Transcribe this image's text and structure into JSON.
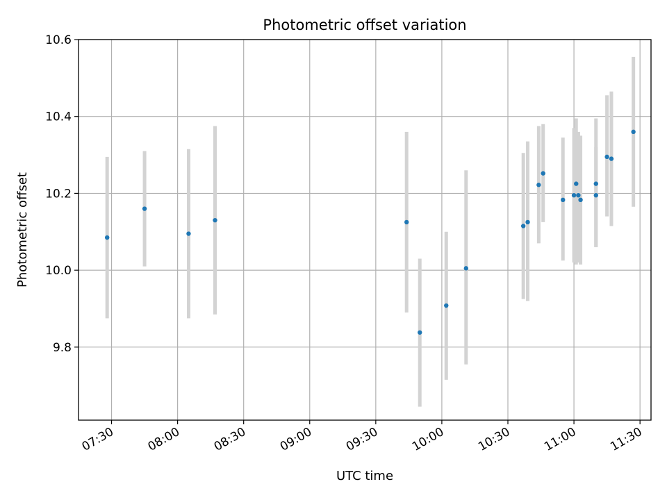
{
  "chart_data": {
    "type": "scatter",
    "title": "Photometric offset variation",
    "xlabel": "UTC time",
    "ylabel": "Photometric offset",
    "x_axis": "time",
    "xlim": [
      "07:15",
      "11:35"
    ],
    "ylim": [
      9.61,
      10.6
    ],
    "xticks": [
      "07:30",
      "08:00",
      "08:30",
      "09:00",
      "09:30",
      "10:00",
      "10:30",
      "11:00",
      "11:30"
    ],
    "yticks": [
      9.8,
      10.0,
      10.2,
      10.4,
      10.6
    ],
    "grid": true,
    "colors": {
      "point": "#1f77b4",
      "errorbar": "#d3d3d3",
      "grid": "#b0b0b0"
    },
    "series": [
      {
        "points": [
          {
            "x": "07:28",
            "y": 10.085,
            "ylow": 9.875,
            "yhigh": 10.295
          },
          {
            "x": "07:45",
            "y": 10.16,
            "ylow": 10.01,
            "yhigh": 10.31
          },
          {
            "x": "08:05",
            "y": 10.095,
            "ylow": 9.875,
            "yhigh": 10.315
          },
          {
            "x": "08:17",
            "y": 10.13,
            "ylow": 9.885,
            "yhigh": 10.375
          },
          {
            "x": "09:44",
            "y": 10.125,
            "ylow": 9.89,
            "yhigh": 10.36
          },
          {
            "x": "09:50",
            "y": 9.838,
            "ylow": 9.645,
            "yhigh": 10.03
          },
          {
            "x": "10:02",
            "y": 9.908,
            "ylow": 9.715,
            "yhigh": 10.1
          },
          {
            "x": "10:11",
            "y": 10.005,
            "ylow": 9.755,
            "yhigh": 10.26
          },
          {
            "x": "10:37",
            "y": 10.115,
            "ylow": 9.925,
            "yhigh": 10.305
          },
          {
            "x": "10:39",
            "y": 10.125,
            "ylow": 9.92,
            "yhigh": 10.335
          },
          {
            "x": "10:44",
            "y": 10.222,
            "ylow": 10.07,
            "yhigh": 10.375
          },
          {
            "x": "10:46",
            "y": 10.252,
            "ylow": 10.125,
            "yhigh": 10.38
          },
          {
            "x": "10:55",
            "y": 10.183,
            "ylow": 10.025,
            "yhigh": 10.345
          },
          {
            "x": "11:00",
            "y": 10.195,
            "ylow": 10.02,
            "yhigh": 10.37
          },
          {
            "x": "11:01",
            "y": 10.225,
            "ylow": 10.015,
            "yhigh": 10.395
          },
          {
            "x": "11:02",
            "y": 10.195,
            "ylow": 10.02,
            "yhigh": 10.36
          },
          {
            "x": "11:03",
            "y": 10.183,
            "ylow": 10.015,
            "yhigh": 10.35
          },
          {
            "x": "11:10",
            "y": 10.195,
            "ylow": 10.06,
            "yhigh": 10.32
          },
          {
            "x": "11:10",
            "y": 10.225,
            "ylow": 10.06,
            "yhigh": 10.395
          },
          {
            "x": "11:15",
            "y": 10.295,
            "ylow": 10.14,
            "yhigh": 10.455
          },
          {
            "x": "11:17",
            "y": 10.29,
            "ylow": 10.115,
            "yhigh": 10.465
          },
          {
            "x": "11:27",
            "y": 10.36,
            "ylow": 10.165,
            "yhigh": 10.555
          }
        ]
      }
    ]
  }
}
